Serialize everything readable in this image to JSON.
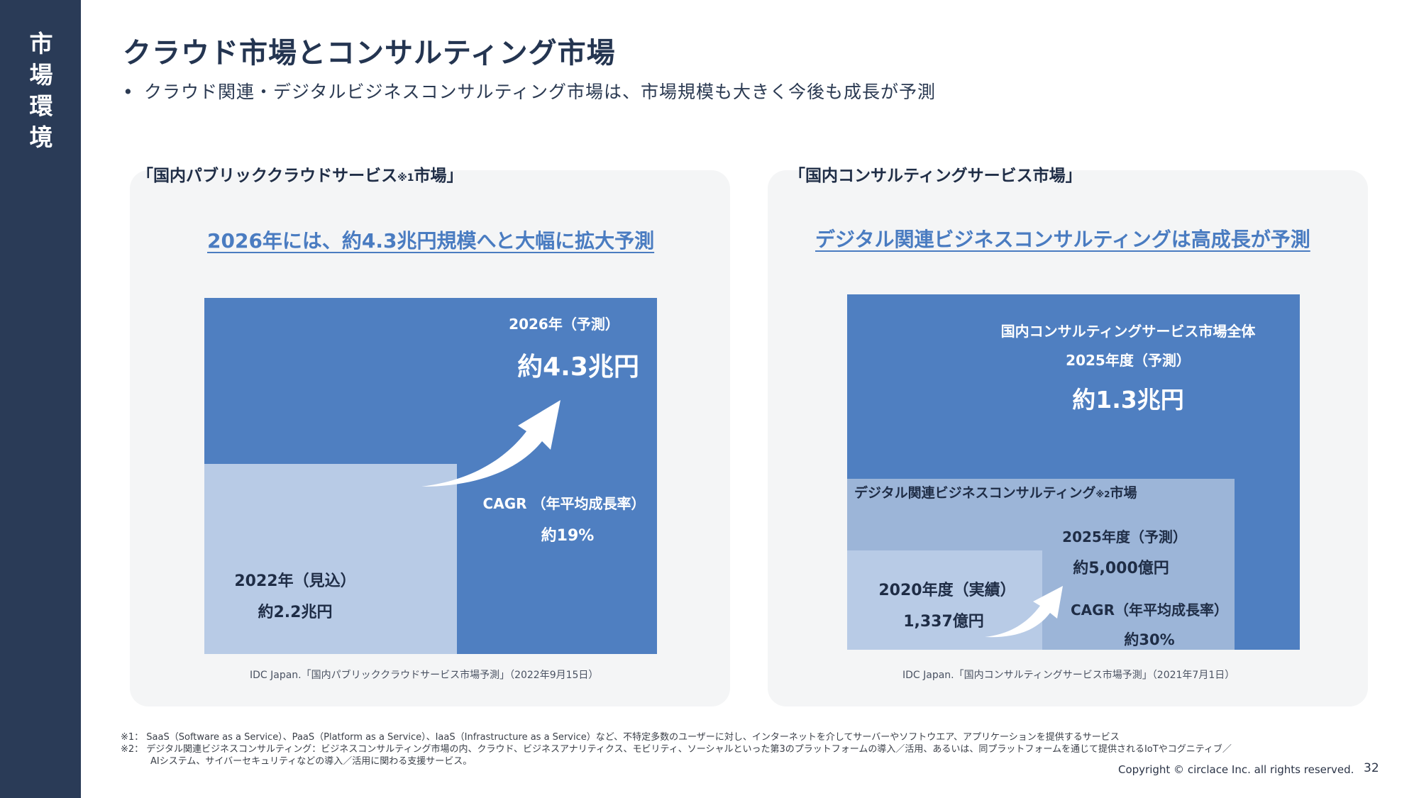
{
  "sidebar": {
    "label": "市場環境"
  },
  "title": "クラウド市場とコンサルティング市場",
  "bullet": "クラウド関連・デジタルビジネスコンサルティング市場は、市場規模も大きく今後も成長が予測",
  "left_panel": {
    "heading_pre": "「国内パブリッククラウドサービス",
    "heading_note": "※1",
    "heading_post": "市場」",
    "subtitle": "2026年には、約4.3兆円規模へと大幅に拡大予測",
    "forecast_label": "2026年（予測）",
    "forecast_value": "約4.3兆円",
    "cagr_label": "CAGR （年平均成長率）",
    "cagr_value": "約19%",
    "base_label": "2022年（見込）",
    "base_value": "約2.2兆円",
    "source": "IDC Japan.「国内パブリッククラウドサービス市場予測」（2022年9月15日）"
  },
  "right_panel": {
    "heading": "「国内コンサルティングサービス市場」",
    "subtitle": "デジタル関連ビジネスコンサルティングは高成長が予測",
    "total_label": "国内コンサルティングサービス市場全体",
    "total_year": "2025年度（予測）",
    "total_value": "約1.3兆円",
    "digital_label_pre": "デジタル関連ビジネスコンサルティング",
    "digital_label_note": "※2",
    "digital_label_post": "市場",
    "digital_year": "2025年度（予測）",
    "digital_value": "約5,000億円",
    "base_label": "2020年度（実績）",
    "base_value": "1,337億円",
    "cagr_label": "CAGR（年平均成長率）",
    "cagr_value": "約30%",
    "source": "IDC Japan.「国内コンサルティングサービス市場予測」（2021年7月1日）"
  },
  "footnotes": {
    "note1": "※1： SaaS（Software as a Service）、PaaS（Platform as a Service）、IaaS（Infrastructure as a Service）など、不特定多数のユーザーに対し、インターネットを介してサーバーやソフトウエア、アプリケーションを提供するサービス",
    "note2_line1": "※2： デジタル関連ビジネスコンサルティング：ビジネスコンサルティング市場の内、クラウド、ビジネスアナリティクス、モビリティ、ソーシャルといった第3のプラットフォームの導入／活用、あるいは、同プラットフォームを通じて提供されるIoTやコグニティブ／",
    "note2_line2": "AIシステム、サイバーセキュリティなどの導入／活用に関わる支援サービス。"
  },
  "copyright": "Copyright © circlace Inc. all rights reserved.",
  "page_number": "32",
  "colors": {
    "sidebar": "#2a3b57",
    "dark_blue": "#4f7fc1",
    "mid_blue": "#9cb5d8",
    "light_blue": "#b8cbe6",
    "accent_text": "#4a7cc1"
  }
}
